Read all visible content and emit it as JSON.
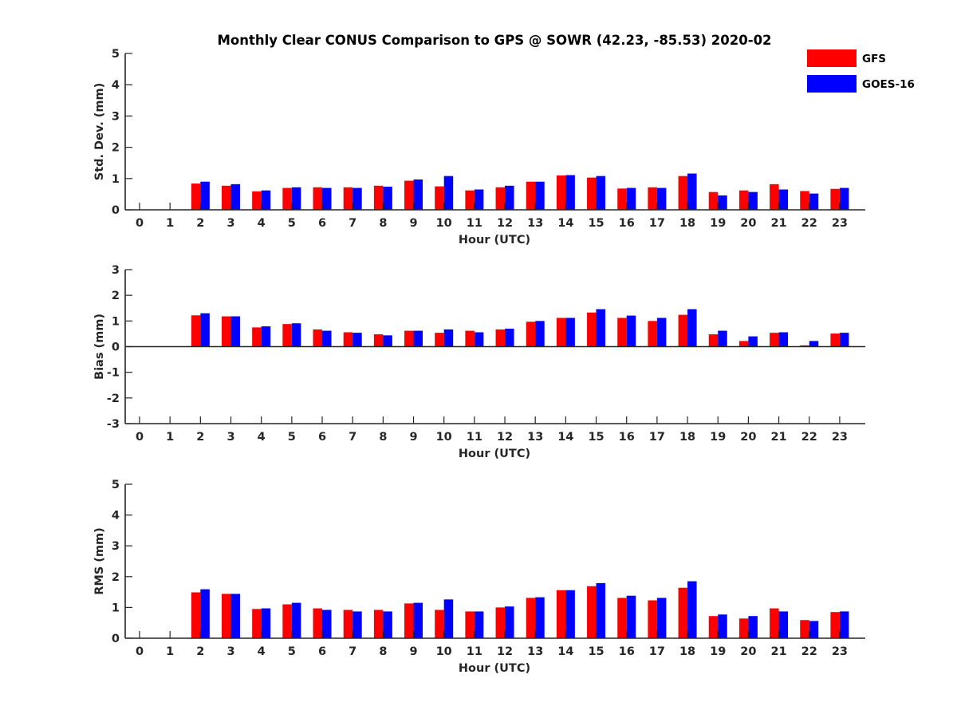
{
  "title": "Monthly Clear CONUS Comparison to GPS @ SOWR (42.23, -85.53) 2020-02",
  "colors": {
    "GFS": "#ff0000",
    "GOES-16": "#0000ff"
  },
  "legend": {
    "placement": "top-right",
    "entries": [
      "GFS",
      "GOES-16"
    ]
  },
  "chart_data": [
    {
      "type": "bar",
      "xlabel": "Hour (UTC)",
      "ylabel": "Std. Dev. (mm)",
      "ylim": [
        0,
        5
      ],
      "yticks": [
        "0",
        "1",
        "2",
        "3",
        "4",
        "5"
      ],
      "categories": [
        "0",
        "1",
        "2",
        "3",
        "4",
        "5",
        "6",
        "7",
        "8",
        "9",
        "10",
        "11",
        "12",
        "13",
        "14",
        "15",
        "16",
        "17",
        "18",
        "19",
        "20",
        "21",
        "22",
        "23"
      ],
      "series": [
        {
          "name": "GFS",
          "values": [
            null,
            null,
            0.84,
            0.77,
            0.59,
            0.7,
            0.72,
            0.72,
            0.77,
            0.93,
            0.75,
            0.62,
            0.72,
            0.9,
            1.1,
            1.03,
            0.68,
            0.72,
            1.08,
            0.57,
            0.62,
            0.82,
            0.6,
            0.67
          ]
        },
        {
          "name": "GOES-16",
          "values": [
            null,
            null,
            0.9,
            0.82,
            0.62,
            0.72,
            0.7,
            0.7,
            0.74,
            0.97,
            1.08,
            0.65,
            0.77,
            0.9,
            1.11,
            1.08,
            0.7,
            0.7,
            1.16,
            0.46,
            0.57,
            0.65,
            0.52,
            0.7
          ]
        }
      ]
    },
    {
      "type": "bar",
      "xlabel": "Hour (UTC)",
      "ylabel": "Bias (mm)",
      "ylim": [
        -3,
        3
      ],
      "yticks": [
        "-3",
        "-2",
        "-1",
        "0",
        "1",
        "2",
        "3"
      ],
      "categories": [
        "0",
        "1",
        "2",
        "3",
        "4",
        "5",
        "6",
        "7",
        "8",
        "9",
        "10",
        "11",
        "12",
        "13",
        "14",
        "15",
        "16",
        "17",
        "18",
        "19",
        "20",
        "21",
        "22",
        "23"
      ],
      "series": [
        {
          "name": "GFS",
          "values": [
            null,
            null,
            1.22,
            1.18,
            0.75,
            0.88,
            0.67,
            0.56,
            0.48,
            0.62,
            0.54,
            0.62,
            0.67,
            0.97,
            1.12,
            1.33,
            1.12,
            1.0,
            1.24,
            0.48,
            0.22,
            0.54,
            0.05,
            0.51
          ]
        },
        {
          "name": "GOES-16",
          "values": [
            null,
            null,
            1.3,
            1.18,
            0.79,
            0.91,
            0.62,
            0.54,
            0.44,
            0.62,
            0.67,
            0.56,
            0.7,
            1.0,
            1.12,
            1.46,
            1.21,
            1.12,
            1.46,
            0.62,
            0.4,
            0.56,
            0.22,
            0.54
          ]
        }
      ]
    },
    {
      "type": "bar",
      "xlabel": "Hour (UTC)",
      "ylabel": "RMS (mm)",
      "ylim": [
        0,
        5
      ],
      "yticks": [
        "0",
        "1",
        "2",
        "3",
        "4",
        "5"
      ],
      "categories": [
        "0",
        "1",
        "2",
        "3",
        "4",
        "5",
        "6",
        "7",
        "8",
        "9",
        "10",
        "11",
        "12",
        "13",
        "14",
        "15",
        "16",
        "17",
        "18",
        "19",
        "20",
        "21",
        "22",
        "23"
      ],
      "series": [
        {
          "name": "GFS",
          "values": [
            null,
            null,
            1.49,
            1.44,
            0.95,
            1.1,
            0.97,
            0.92,
            0.92,
            1.13,
            0.92,
            0.87,
            1.0,
            1.31,
            1.56,
            1.69,
            1.31,
            1.23,
            1.64,
            0.72,
            0.64,
            0.97,
            0.59,
            0.85
          ]
        },
        {
          "name": "GOES-16",
          "values": [
            null,
            null,
            1.59,
            1.44,
            0.97,
            1.15,
            0.92,
            0.87,
            0.87,
            1.15,
            1.26,
            0.87,
            1.03,
            1.33,
            1.56,
            1.79,
            1.38,
            1.31,
            1.85,
            0.77,
            0.72,
            0.87,
            0.56,
            0.87
          ]
        }
      ]
    }
  ]
}
